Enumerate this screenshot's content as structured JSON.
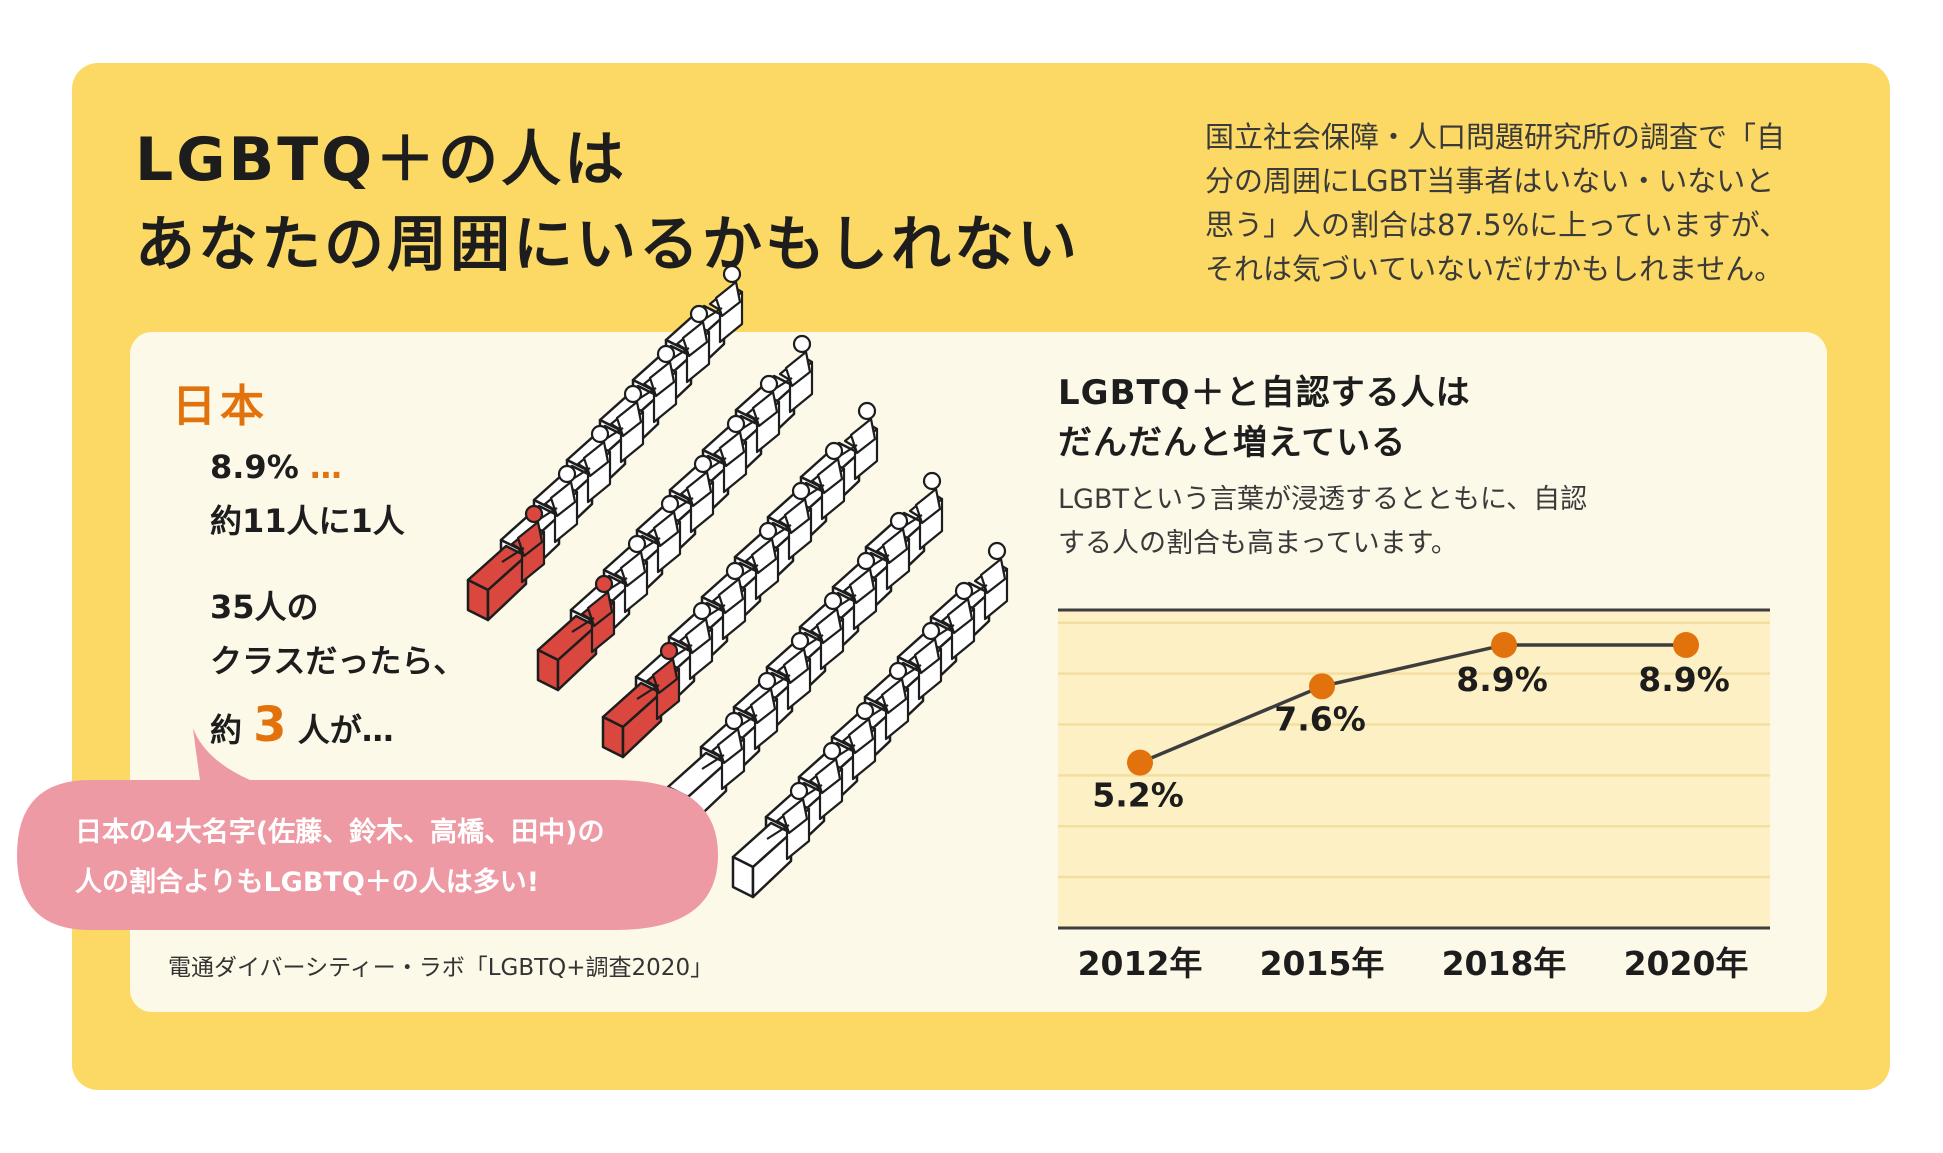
{
  "title": {
    "line1": "LGBTQ＋の人は",
    "line2": "あなたの周囲にいるかもしれない"
  },
  "intro": {
    "line1": "国立社会保障・人口問題研究所の調査で「自",
    "line2": "分の周囲にLGBT当事者はいない・いないと",
    "line3": "思う」人の割合は87.5%に上っていますが、",
    "line4": "それは気づいていないだけかもしれません。"
  },
  "left": {
    "heading": "日本",
    "stat_pct": "8.9%",
    "stat_dots": "…",
    "stat_ratio": "約11人に1人",
    "class_line1": "35人の",
    "class_line2": "クラスだったら、",
    "class_pre": "約",
    "class_num": "3",
    "class_post": "人が…",
    "bubble_line1": "日本の4大名字(佐藤、鈴木、高橋、田中)の",
    "bubble_line2": "人の割合よりもLGBTQ＋の人は多い!",
    "source": "電通ダイバーシティー・ラボ「LGBTQ+調査2020」"
  },
  "illustration": {
    "rows": 5,
    "seats_per_row": 7,
    "highlighted_rows": [
      0,
      1,
      2
    ],
    "highlight_color": "#d9473f"
  },
  "chart_title": {
    "line1": "LGBTQ＋と自認する人は",
    "line2": "だんだんと増えている"
  },
  "chart_subtitle": {
    "line1": "LGBTという言葉が浸透するとともに、自認",
    "line2": "する人の割合も高まっています。"
  },
  "chart_data": {
    "type": "line",
    "title": "LGBTQ＋と自認する人はだんだんと増えている",
    "categories": [
      "2012年",
      "2015年",
      "2018年",
      "2020年"
    ],
    "series": [
      {
        "values": [
          5.2,
          7.6,
          8.9,
          8.9
        ],
        "labels": [
          "5.2%",
          "7.6%",
          "8.9%",
          "8.9%"
        ]
      }
    ],
    "ylim": [
      0,
      10
    ],
    "grid": true,
    "legend": "none",
    "colors": {
      "marker": "#e2720c",
      "line": "#3d3d3d",
      "plot_bg": "#fdf0c4",
      "grid": "#f2dfa0"
    }
  },
  "colors": {
    "outer_bg": "#fbd964",
    "inner_bg": "#fdf9e9",
    "accent": "#e2720c",
    "bubble": "#ee9aa5"
  }
}
